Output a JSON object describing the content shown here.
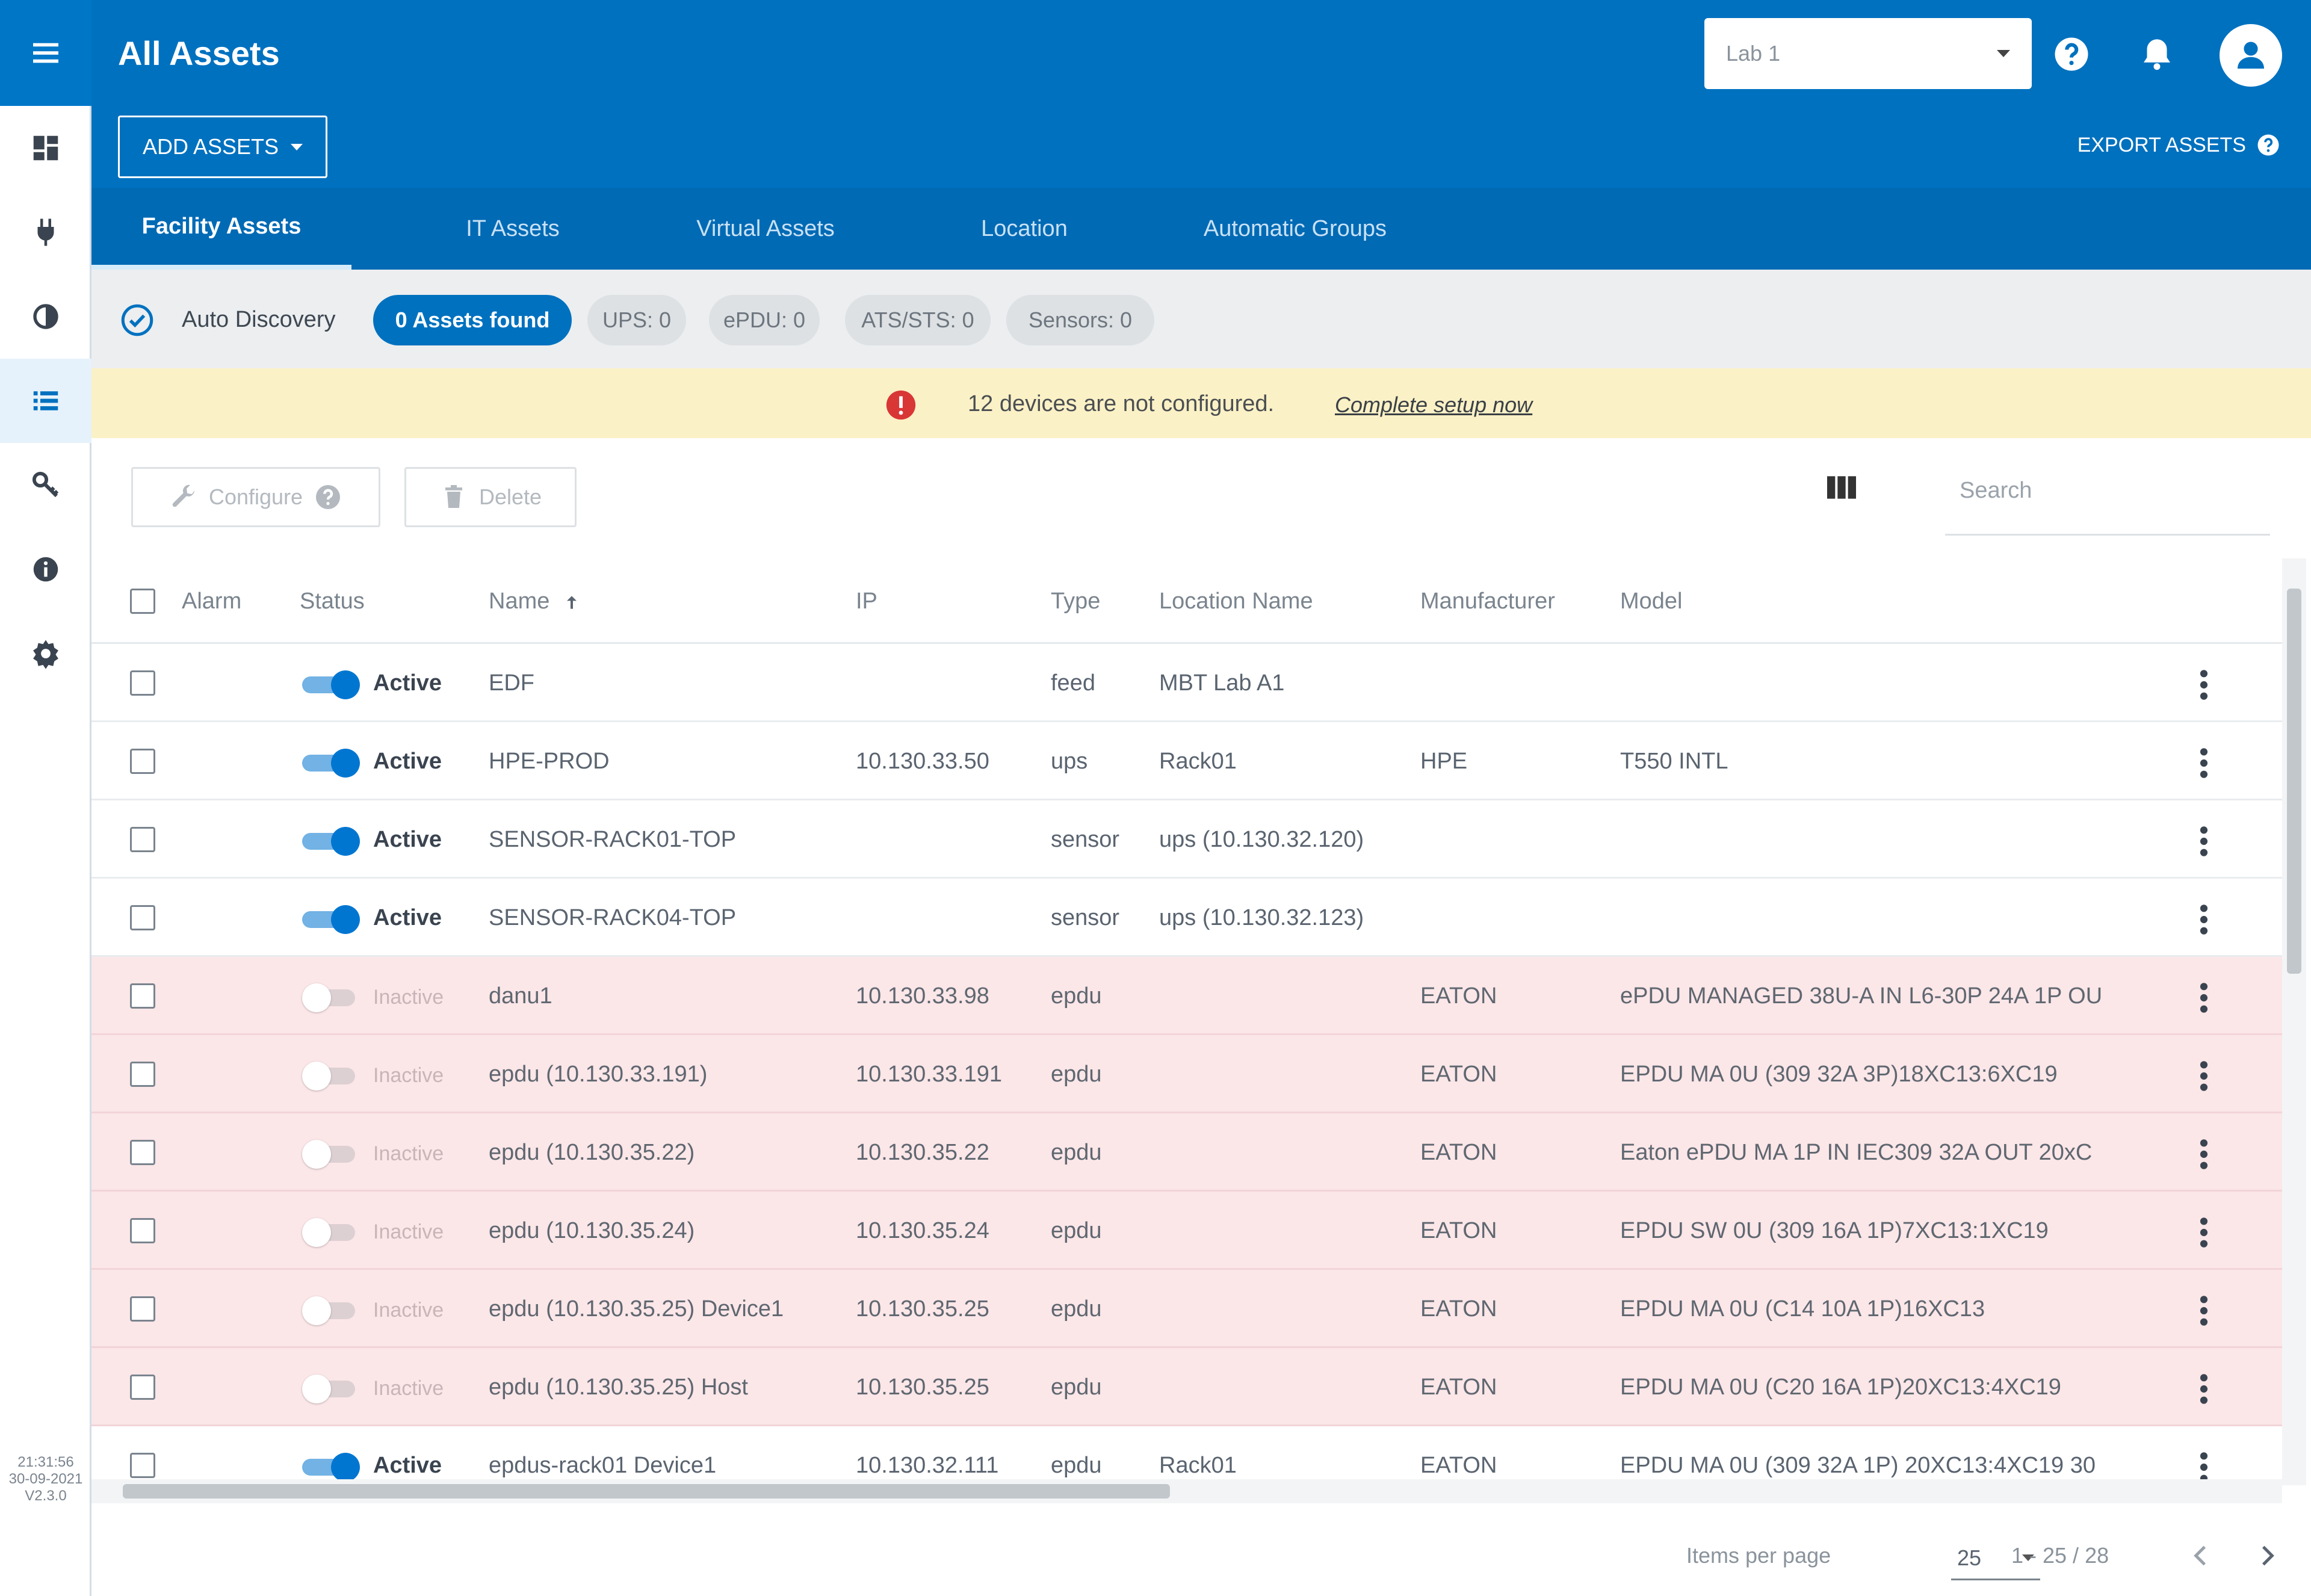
{
  "header": {
    "title": "All Assets",
    "location_value": "Lab 1",
    "add_assets_label": "ADD ASSETS",
    "export_assets_label": "EXPORT ASSETS",
    "accent_color": "#0071bf"
  },
  "rail": {
    "items": [
      "dashboard-icon",
      "plug-icon",
      "contrast-icon",
      "list-icon",
      "key-icon",
      "info-icon",
      "gear-icon"
    ],
    "selected": "list-icon",
    "clock_time": "21:31:56",
    "clock_date": "30-09-2021",
    "version": "V2.3.0"
  },
  "tabs": [
    {
      "label": "Facility Assets",
      "active": true
    },
    {
      "label": "IT Assets",
      "active": false
    },
    {
      "label": "Virtual Assets",
      "active": false
    },
    {
      "label": "Location",
      "active": false
    },
    {
      "label": "Automatic Groups",
      "active": false
    }
  ],
  "discovery": {
    "label": "Auto Discovery",
    "chips": [
      "0 Assets found",
      "UPS: 0",
      "ePDU: 0",
      "ATS/STS: 0",
      "Sensors: 0"
    ]
  },
  "warning": {
    "message": "12 devices are not configured.",
    "link": "Complete setup now",
    "color": "#fbf1c6"
  },
  "toolbar": {
    "configure_label": "Configure",
    "delete_label": "Delete",
    "search_placeholder": "Search"
  },
  "table": {
    "columns": [
      "Alarm",
      "Status",
      "Name",
      "IP",
      "Type",
      "Location Name",
      "Manufacturer",
      "Model"
    ],
    "sort_column": "Name",
    "rows": [
      {
        "status": "Active",
        "name": "EDF",
        "ip": "",
        "type": "feed",
        "location": "MBT Lab A1",
        "manufacturer": "",
        "model": ""
      },
      {
        "status": "Active",
        "name": "HPE-PROD",
        "ip": "10.130.33.50",
        "type": "ups",
        "location": "Rack01",
        "manufacturer": "HPE",
        "model": "T550 INTL"
      },
      {
        "status": "Active",
        "name": "SENSOR-RACK01-TOP",
        "ip": "",
        "type": "sensor",
        "location": "ups (10.130.32.120)",
        "manufacturer": "",
        "model": ""
      },
      {
        "status": "Active",
        "name": "SENSOR-RACK04-TOP",
        "ip": "",
        "type": "sensor",
        "location": "ups (10.130.32.123)",
        "manufacturer": "",
        "model": ""
      },
      {
        "status": "Inactive",
        "name": "danu1",
        "ip": "10.130.33.98",
        "type": "epdu",
        "location": "",
        "manufacturer": "EATON",
        "model": "ePDU MANAGED 38U-A IN L6-30P 24A 1P OU"
      },
      {
        "status": "Inactive",
        "name": "epdu (10.130.33.191)",
        "ip": "10.130.33.191",
        "type": "epdu",
        "location": "",
        "manufacturer": "EATON",
        "model": "EPDU MA 0U (309 32A 3P)18XC13:6XC19"
      },
      {
        "status": "Inactive",
        "name": "epdu (10.130.35.22)",
        "ip": "10.130.35.22",
        "type": "epdu",
        "location": "",
        "manufacturer": "EATON",
        "model": "Eaton ePDU MA 1P IN IEC309 32A OUT 20xC"
      },
      {
        "status": "Inactive",
        "name": "epdu (10.130.35.24)",
        "ip": "10.130.35.24",
        "type": "epdu",
        "location": "",
        "manufacturer": "EATON",
        "model": "EPDU SW 0U (309 16A 1P)7XC13:1XC19"
      },
      {
        "status": "Inactive",
        "name": "epdu (10.130.35.25) Device1",
        "ip": "10.130.35.25",
        "type": "epdu",
        "location": "",
        "manufacturer": "EATON",
        "model": "EPDU MA 0U (C14 10A 1P)16XC13"
      },
      {
        "status": "Inactive",
        "name": "epdu (10.130.35.25) Host",
        "ip": "10.130.35.25",
        "type": "epdu",
        "location": "",
        "manufacturer": "EATON",
        "model": "EPDU MA 0U (C20 16A 1P)20XC13:4XC19"
      },
      {
        "status": "Active",
        "name": "epdus-rack01 Device1",
        "ip": "10.130.32.111",
        "type": "epdu",
        "location": "Rack01",
        "manufacturer": "EATON",
        "model": "EPDU MA 0U (309 32A 1P) 20XC13:4XC19 30"
      }
    ]
  },
  "pagination": {
    "items_per_page_label": "Items per page",
    "items_per_page": "25",
    "range": "1 - 25 / 28"
  }
}
